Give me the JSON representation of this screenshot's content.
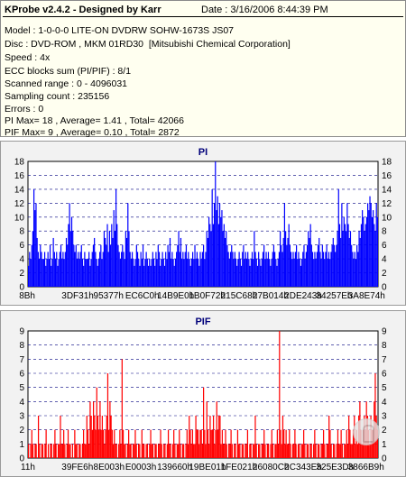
{
  "header": {
    "title": "KProbe v2.4.2 - Designed by Karr",
    "date": "Date : 3/16/2006 8:44:39 PM"
  },
  "info_lines": [
    "Model : 1-0-0-0 LITE-ON DVDRW SOHW-1673S JS07",
    "Disc : DVD-ROM , MKM 01RD30  [Mitsubishi Chemical Corporation]",
    "Speed : 4x",
    "ECC blocks sum (PI/PIF) : 8/1",
    "Scanned range : 0 - 4096031",
    "Sampling count : 235156",
    "Errors : 0",
    "PI Max= 18 , Average= 1.41 , Total= 42066",
    "PIF Max= 9 , Average= 0.10 , Total= 2872"
  ],
  "chart_data": [
    {
      "type": "bar",
      "title": "PI",
      "color": "#0000ff",
      "ylim": [
        0,
        18
      ],
      "yticks": [
        0,
        2,
        4,
        6,
        8,
        10,
        12,
        14,
        16,
        18
      ],
      "xticks": [
        "8Bh",
        "3DF31h",
        "95377h",
        "EC6C0h",
        "14B9E0h",
        "1B0F72h",
        "215C68h",
        "27B014h",
        "2DE243h",
        "34257Eh",
        "3A8E74h"
      ],
      "grid": true,
      "values": [
        3,
        5,
        4,
        6,
        8,
        14,
        11,
        12,
        7,
        5,
        4,
        6,
        5,
        4,
        4,
        5,
        3,
        4,
        5,
        4,
        6,
        3,
        4,
        7,
        5,
        4,
        5,
        3,
        4,
        5,
        6,
        4,
        5,
        4,
        5,
        7,
        6,
        9,
        12,
        8,
        10,
        8,
        6,
        5,
        6,
        4,
        5,
        4,
        5,
        6,
        4,
        3,
        5,
        4,
        4,
        4,
        5,
        3,
        4,
        5,
        6,
        7,
        5,
        4,
        3,
        4,
        5,
        6,
        4,
        5,
        8,
        7,
        6,
        9,
        5,
        8,
        6,
        9,
        7,
        11,
        8,
        14,
        9,
        6,
        5,
        4,
        5,
        6,
        5,
        4,
        8,
        7,
        12,
        8,
        5,
        4,
        5,
        4,
        3,
        4,
        6,
        5,
        4,
        3,
        5,
        4,
        6,
        3,
        4,
        5,
        4,
        3,
        4,
        3,
        4,
        5,
        4,
        3,
        5,
        4,
        6,
        5,
        3,
        4,
        5,
        4,
        3,
        5,
        4,
        6,
        5,
        7,
        4,
        5,
        4,
        3,
        4,
        5,
        6,
        8,
        5,
        7,
        4,
        5,
        4,
        5,
        6,
        4,
        5,
        4,
        3,
        4,
        5,
        4,
        6,
        4,
        5,
        4,
        3,
        5,
        4,
        5,
        6,
        4,
        5,
        8,
        7,
        10,
        9,
        8,
        14,
        9,
        12,
        18,
        11,
        13,
        9,
        12,
        10,
        11,
        8,
        9,
        7,
        8,
        6,
        5,
        4,
        5,
        6,
        5,
        4,
        5,
        4,
        3,
        4,
        5,
        4,
        3,
        5,
        6,
        4,
        5,
        4,
        5,
        4,
        3,
        4,
        5,
        4,
        8,
        5,
        4,
        3,
        5,
        4,
        3,
        4,
        5,
        6,
        4,
        5,
        4,
        5,
        4,
        3,
        4,
        5,
        6,
        5,
        4,
        3,
        4,
        5,
        8,
        6,
        5,
        7,
        12,
        8,
        6,
        7,
        9,
        6,
        5,
        4,
        5,
        4,
        5,
        6,
        4,
        5,
        4,
        3,
        4,
        5,
        6,
        4,
        5,
        6,
        8,
        7,
        9,
        6,
        5,
        4,
        5,
        4,
        5,
        6,
        7,
        5,
        4,
        6,
        5,
        4,
        5,
        6,
        4,
        5,
        4,
        5,
        6,
        7,
        6,
        5,
        6,
        8,
        14,
        9,
        7,
        12,
        8,
        10,
        9,
        8,
        12,
        9,
        7,
        8,
        6,
        5,
        4,
        5,
        4,
        6,
        5,
        8,
        7,
        9,
        11,
        10,
        8,
        9,
        10,
        12,
        11,
        13,
        12,
        10,
        11,
        9,
        8,
        12,
        10
      ]
    },
    {
      "type": "bar",
      "title": "PIF",
      "color": "#ff0000",
      "ylim": [
        0,
        9
      ],
      "yticks": [
        0,
        1,
        2,
        3,
        4,
        5,
        6,
        7,
        8,
        9
      ],
      "xticks": [
        "11h",
        "39FE6h",
        "8E003h",
        "E0003h",
        "139660h",
        "19BE01h",
        "1FE021h",
        "26080Ch",
        "2C343Eh",
        "325E3Dh",
        "3866B9h"
      ],
      "grid": true,
      "values": [
        1,
        0,
        1,
        2,
        1,
        0,
        1,
        1,
        0,
        3,
        1,
        0,
        1,
        1,
        0,
        1,
        2,
        0,
        1,
        0,
        1,
        1,
        0,
        1,
        2,
        1,
        0,
        1,
        1,
        3,
        1,
        1,
        2,
        1,
        0,
        1,
        2,
        1,
        1,
        0,
        1,
        0,
        2,
        1,
        1,
        0,
        1,
        1,
        0,
        1,
        2,
        1,
        1,
        3,
        2,
        1,
        4,
        3,
        2,
        4,
        3,
        2,
        5,
        3,
        2,
        4,
        2,
        3,
        2,
        1,
        2,
        3,
        6,
        2,
        4,
        3,
        2,
        1,
        2,
        1,
        1,
        0,
        1,
        2,
        1,
        7,
        2,
        1,
        1,
        0,
        1,
        2,
        1,
        1,
        0,
        1,
        1,
        2,
        1,
        0,
        1,
        1,
        0,
        2,
        1,
        1,
        0,
        1,
        1,
        0,
        1,
        2,
        1,
        1,
        0,
        1,
        1,
        0,
        1,
        1,
        2,
        1,
        0,
        1,
        1,
        0,
        1,
        2,
        1,
        1,
        0,
        1,
        2,
        1,
        0,
        1,
        1,
        2,
        1,
        0,
        1,
        1,
        0,
        1,
        2,
        1,
        3,
        2,
        1,
        2,
        1,
        1,
        3,
        2,
        2,
        1,
        2,
        2,
        1,
        5,
        2,
        1,
        4,
        2,
        1,
        3,
        2,
        2,
        3,
        1,
        2,
        4,
        2,
        3,
        3,
        1,
        2,
        1,
        1,
        2,
        1,
        0,
        1,
        1,
        2,
        1,
        0,
        1,
        1,
        0,
        2,
        1,
        1,
        0,
        1,
        1,
        0,
        1,
        1,
        2,
        0,
        1,
        1,
        0,
        1,
        1,
        3,
        1,
        0,
        1,
        1,
        0,
        1,
        1,
        2,
        1,
        0,
        1,
        1,
        0,
        1,
        2,
        1,
        0,
        1,
        1,
        2,
        1,
        9,
        2,
        1,
        3,
        2,
        1,
        2,
        1,
        1,
        2,
        1,
        0,
        1,
        1,
        2,
        1,
        0,
        1,
        1,
        0,
        1,
        1,
        2,
        1,
        0,
        1,
        1,
        0,
        1,
        1,
        0,
        1,
        2,
        1,
        0,
        1,
        1,
        0,
        1,
        1,
        2,
        1,
        0,
        1,
        1,
        3,
        2,
        1,
        0,
        1,
        1,
        0,
        1,
        2,
        1,
        1,
        2,
        1,
        0,
        1,
        1,
        2,
        1,
        3,
        2,
        1,
        1,
        2,
        3,
        1,
        2,
        1,
        3,
        4,
        2,
        1,
        2,
        3,
        2,
        4,
        3,
        2,
        1,
        3,
        2,
        2,
        4,
        6,
        3,
        2
      ]
    }
  ]
}
